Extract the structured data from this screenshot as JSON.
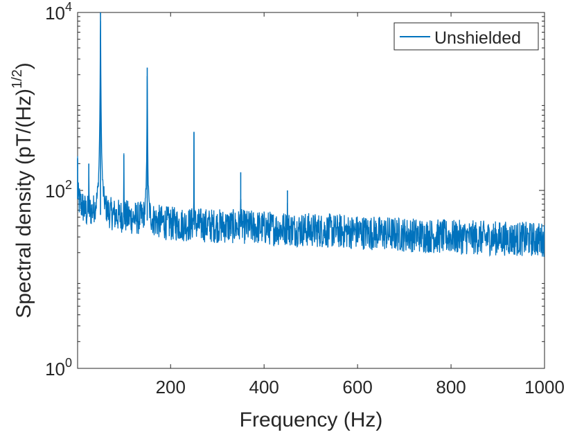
{
  "chart_data": {
    "type": "line",
    "xlabel": "Frequency (Hz)",
    "ylabel_main": "Spectral density (pT/(Hz)",
    "ylabel_sup": "1/2",
    "ylabel_close": ")",
    "xlim": [
      1,
      1000
    ],
    "ylim": [
      1,
      10000
    ],
    "yscale": "log",
    "grid": false,
    "legend_position": "top-right",
    "x_ticks": [
      {
        "value": 200,
        "label": "200"
      },
      {
        "value": 400,
        "label": "400"
      },
      {
        "value": 600,
        "label": "600"
      },
      {
        "value": 800,
        "label": "800"
      },
      {
        "value": 1000,
        "label": "1000"
      }
    ],
    "y_ticks": [
      {
        "value": 1,
        "base": "10",
        "exp": "0"
      },
      {
        "value": 100,
        "base": "10",
        "exp": "2"
      },
      {
        "value": 10000,
        "base": "10",
        "exp": "4"
      }
    ],
    "series": [
      {
        "name": "Unshielded",
        "color": "#0072BD",
        "baseline": [
          [
            1,
            80
          ],
          [
            20,
            55
          ],
          [
            100,
            50
          ],
          [
            200,
            42
          ],
          [
            400,
            38
          ],
          [
            600,
            34
          ],
          [
            800,
            30
          ],
          [
            1000,
            28
          ]
        ],
        "peaks": [
          {
            "x": 1,
            "y": 230
          },
          {
            "x": 25,
            "y": 200
          },
          {
            "x": 50,
            "y": 10000
          },
          {
            "x": 100,
            "y": 250
          },
          {
            "x": 150,
            "y": 2400
          },
          {
            "x": 250,
            "y": 450
          },
          {
            "x": 350,
            "y": 160
          },
          {
            "x": 450,
            "y": 100
          }
        ]
      }
    ]
  }
}
